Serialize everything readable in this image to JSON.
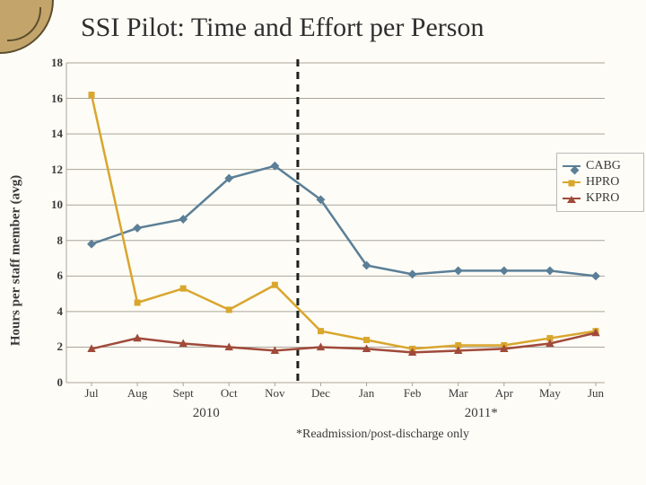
{
  "title": "SSI Pilot: Time and Effort per Person",
  "y_axis_label": "Hours per staff member (avg)",
  "chart": {
    "type": "line",
    "background_color": "#fdfcf6",
    "grid_color": "#aaa59a",
    "axis_color": "#aaa59a",
    "ylim": [
      0,
      18
    ],
    "ytick_step": 2,
    "yticks": [
      0,
      2,
      4,
      6,
      8,
      10,
      12,
      14,
      16,
      18
    ],
    "categories": [
      "Jul",
      "Aug",
      "Sept",
      "Oct",
      "Nov",
      "Dec",
      "Jan",
      "Feb",
      "Mar",
      "Apr",
      "May",
      "Jun"
    ],
    "group_labels": [
      {
        "text": "2010",
        "center_index": 2.5
      },
      {
        "text": "2011*",
        "center_index": 8.5
      }
    ],
    "divider": {
      "after_index": 4.5,
      "color": "#1f1f1f",
      "dash": "8 6",
      "width": 3
    },
    "series": [
      {
        "key": "CABG",
        "label": "CABG",
        "color": "#5b7f97",
        "marker": "diamond",
        "marker_size": 7,
        "line_width": 2.5,
        "values": [
          7.8,
          8.7,
          9.2,
          11.5,
          12.2,
          10.3,
          6.6,
          6.1,
          6.3,
          6.3,
          6.3,
          6.0
        ]
      },
      {
        "key": "HPRO",
        "label": "HPRO",
        "color": "#d9a62e",
        "marker": "square",
        "marker_size": 7,
        "line_width": 2.5,
        "values": [
          16.2,
          4.5,
          5.3,
          4.1,
          5.5,
          2.9,
          2.4,
          1.9,
          2.1,
          2.1,
          2.5,
          2.9
        ]
      },
      {
        "key": "KPRO",
        "label": "KPRO",
        "color": "#a04a3a",
        "marker": "triangle",
        "marker_size": 8,
        "line_width": 2.5,
        "values": [
          1.9,
          2.5,
          2.2,
          2.0,
          1.8,
          2.0,
          1.9,
          1.7,
          1.8,
          1.9,
          2.2,
          2.8
        ]
      }
    ],
    "legend_position": "right",
    "tick_fontsize": 13,
    "tick_fontweight": "bold",
    "label_fontsize": 15
  },
  "footnote": "*Readmission/post-discharge only"
}
